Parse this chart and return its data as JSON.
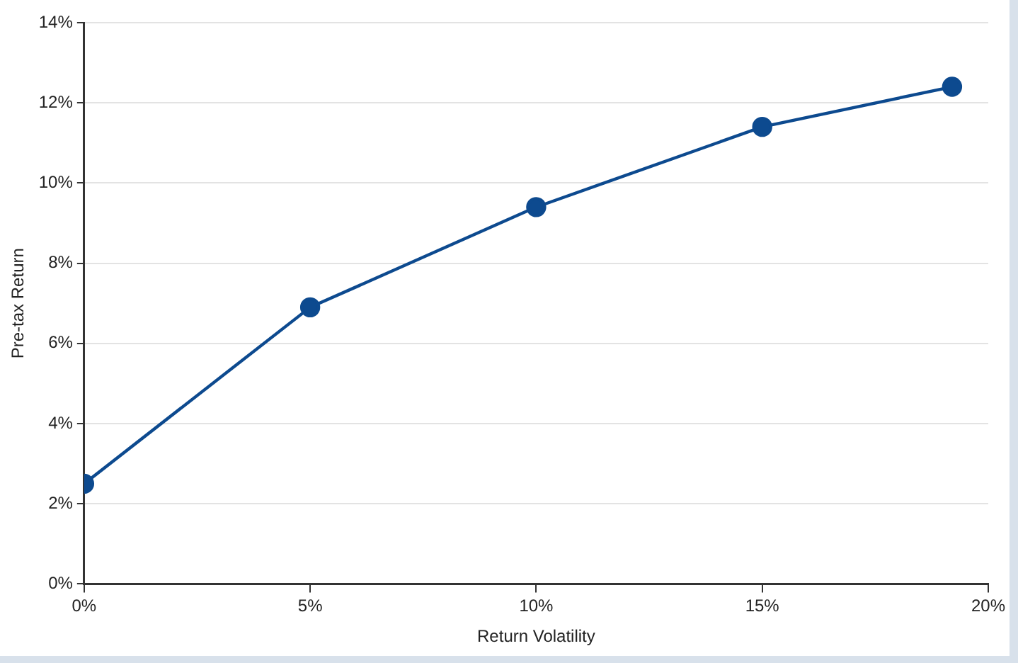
{
  "chart_data": {
    "type": "line",
    "xlabel": "Return Volatility",
    "ylabel": "Pre-tax Return",
    "x": [
      0,
      5,
      10,
      15,
      19.2
    ],
    "series": [
      {
        "color": "#0d4a8f",
        "values": [
          2.5,
          6.9,
          9.4,
          11.4,
          12.4
        ]
      }
    ],
    "xlim": [
      0,
      20
    ],
    "xticks": [
      {
        "value": 0,
        "label": "0%"
      },
      {
        "value": 5,
        "label": "5%"
      },
      {
        "value": 10,
        "label": "10%"
      },
      {
        "value": 15,
        "label": "15%"
      },
      {
        "value": 20,
        "label": "20%"
      }
    ],
    "ylim": [
      0,
      14
    ],
    "yticks": [
      {
        "value": 0,
        "label": "0%"
      },
      {
        "value": 2,
        "label": "2%"
      },
      {
        "value": 4,
        "label": "4%"
      },
      {
        "value": 6,
        "label": "6%"
      },
      {
        "value": 8,
        "label": "8%"
      },
      {
        "value": 10,
        "label": "10%"
      },
      {
        "value": 12,
        "label": "12%"
      },
      {
        "value": 14,
        "label": "14%"
      }
    ],
    "grid": "y",
    "legend": false,
    "marker": "circle",
    "line_style": "solid"
  }
}
